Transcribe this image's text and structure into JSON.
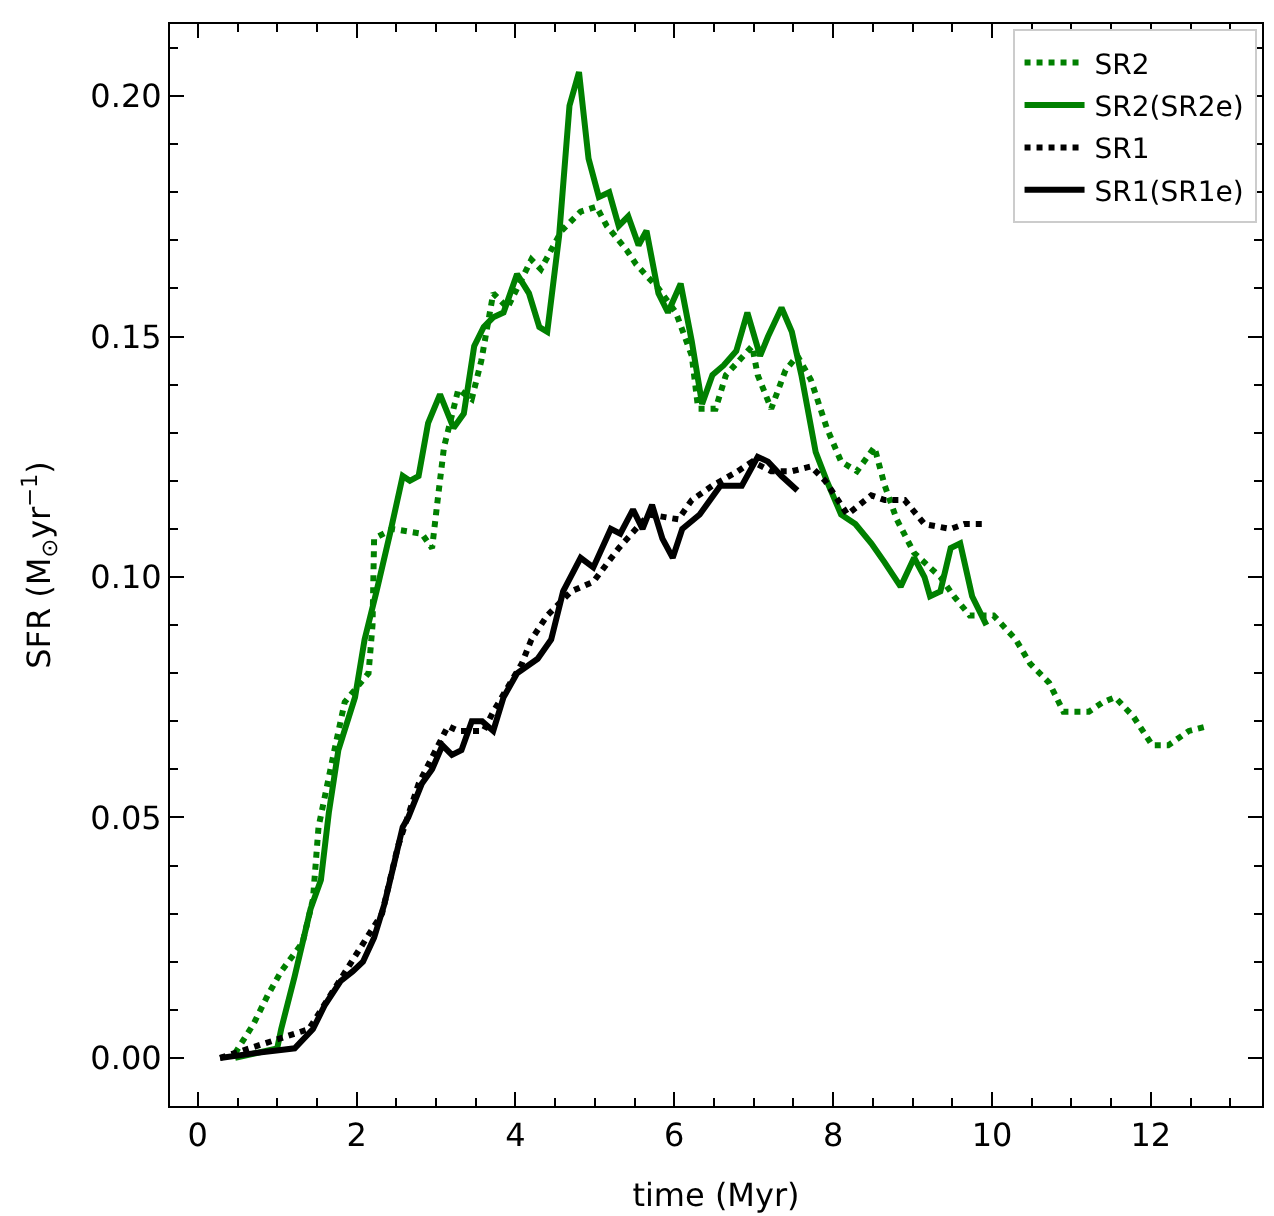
{
  "chart_data": {
    "type": "line",
    "xlabel": "time (Myr)",
    "ylabel": "SFR (M$_{⊙}$yr$^{−1}$)",
    "xlim": [
      -0.35,
      13.4
    ],
    "ylim": [
      -0.01,
      0.215
    ],
    "xticks": [
      0,
      2,
      4,
      6,
      8,
      10,
      12
    ],
    "yticks": [
      {
        "value": 0,
        "label": "0.00"
      },
      {
        "value": 0.05,
        "label": "0.05"
      },
      {
        "value": 0.1,
        "label": "0.10"
      },
      {
        "value": 0.15,
        "label": "0.15"
      },
      {
        "value": 0.2,
        "label": "0.20"
      }
    ],
    "legend": "top right",
    "marker": "none",
    "series": [
      {
        "name": "SR2",
        "color": "#008000",
        "line_style": "dotted",
        "x": [
          0.47,
          0.7,
          0.88,
          1.05,
          1.32,
          1.45,
          1.52,
          1.72,
          1.85,
          2.15,
          2.2,
          2.22,
          2.45,
          2.82,
          2.95,
          3.02,
          3.1,
          3.28,
          3.45,
          3.57,
          3.72,
          3.9,
          4.2,
          4.32,
          4.58,
          4.82,
          5.02,
          5.15,
          5.4,
          5.52,
          5.8,
          6.02,
          6.22,
          6.3,
          6.52,
          6.65,
          6.98,
          7.05,
          7.22,
          7.4,
          7.55,
          7.72,
          7.92,
          8.1,
          8.3,
          8.52,
          8.65,
          8.8,
          9.02,
          9.35,
          9.52,
          9.72,
          10.02,
          10.3,
          10.48,
          10.72,
          10.9,
          11.22,
          11.4,
          11.55,
          11.78,
          12.02,
          12.22,
          12.48,
          12.72
        ],
        "values": [
          0.001,
          0.007,
          0.013,
          0.018,
          0.024,
          0.033,
          0.048,
          0.064,
          0.074,
          0.08,
          0.09,
          0.108,
          0.11,
          0.109,
          0.106,
          0.116,
          0.127,
          0.139,
          0.137,
          0.145,
          0.159,
          0.156,
          0.166,
          0.164,
          0.172,
          0.176,
          0.177,
          0.173,
          0.168,
          0.165,
          0.16,
          0.155,
          0.146,
          0.135,
          0.135,
          0.142,
          0.148,
          0.142,
          0.135,
          0.143,
          0.146,
          0.141,
          0.131,
          0.124,
          0.122,
          0.127,
          0.119,
          0.112,
          0.105,
          0.1,
          0.096,
          0.092,
          0.092,
          0.087,
          0.082,
          0.078,
          0.072,
          0.072,
          0.074,
          0.075,
          0.071,
          0.065,
          0.065,
          0.068,
          0.069
        ]
      },
      {
        "name": "SR2(SR2e)",
        "color": "#008000",
        "line_style": "solid",
        "x": [
          0.47,
          1.0,
          1.05,
          1.22,
          1.42,
          1.55,
          1.65,
          1.77,
          1.98,
          2.1,
          2.25,
          2.42,
          2.58,
          2.67,
          2.78,
          2.9,
          3.05,
          3.22,
          3.35,
          3.48,
          3.6,
          3.72,
          3.85,
          4.02,
          4.17,
          4.3,
          4.4,
          4.55,
          4.68,
          4.8,
          4.92,
          5.05,
          5.18,
          5.3,
          5.42,
          5.55,
          5.65,
          5.8,
          5.92,
          6.08,
          6.22,
          6.35,
          6.48,
          6.62,
          6.78,
          6.92,
          7.08,
          7.18,
          7.35,
          7.48,
          7.6,
          7.78,
          7.92,
          8.1,
          8.28,
          8.48,
          8.65,
          8.85,
          9.02,
          9.15,
          9.22,
          9.35,
          9.48,
          9.6,
          9.75,
          9.93
        ],
        "values": [
          0,
          0.002,
          0.006,
          0.017,
          0.031,
          0.037,
          0.051,
          0.064,
          0.075,
          0.087,
          0.097,
          0.109,
          0.121,
          0.12,
          0.121,
          0.132,
          0.138,
          0.131,
          0.134,
          0.148,
          0.152,
          0.154,
          0.155,
          0.163,
          0.159,
          0.152,
          0.151,
          0.171,
          0.198,
          0.205,
          0.187,
          0.179,
          0.18,
          0.173,
          0.175,
          0.169,
          0.172,
          0.159,
          0.155,
          0.161,
          0.149,
          0.136,
          0.142,
          0.144,
          0.147,
          0.155,
          0.146,
          0.15,
          0.156,
          0.151,
          0.142,
          0.126,
          0.12,
          0.113,
          0.111,
          0.107,
          0.103,
          0.098,
          0.104,
          0.1,
          0.096,
          0.097,
          0.106,
          0.107,
          0.096,
          0.09
        ]
      },
      {
        "name": "SR1",
        "color": "#000000",
        "line_style": "dotted",
        "x": [
          0.28,
          1.4,
          2.32,
          2.52,
          2.78,
          3.15,
          3.28,
          3.6,
          3.72,
          4.08,
          4.2,
          4.4,
          4.7,
          4.98,
          5.3,
          5.68,
          6.05,
          6.22,
          6.48,
          6.8,
          6.98,
          7.22,
          7.48,
          7.72,
          7.9,
          8.18,
          8.48,
          8.65,
          8.9,
          9.15,
          9.48,
          9.65,
          9.92
        ],
        "values": [
          0,
          0.006,
          0.03,
          0.044,
          0.057,
          0.069,
          0.068,
          0.068,
          0.072,
          0.082,
          0.087,
          0.092,
          0.097,
          0.099,
          0.106,
          0.113,
          0.112,
          0.116,
          0.119,
          0.122,
          0.124,
          0.122,
          0.122,
          0.123,
          0.12,
          0.113,
          0.117,
          0.116,
          0.116,
          0.111,
          0.11,
          0.111,
          0.111
        ]
      },
      {
        "name": "SR1(SR1e)",
        "color": "#000000",
        "line_style": "solid",
        "x": [
          0.28,
          0.72,
          1.22,
          1.45,
          1.6,
          1.8,
          1.95,
          2.08,
          2.22,
          2.35,
          2.48,
          2.58,
          2.65,
          2.82,
          2.95,
          3.08,
          3.2,
          3.32,
          3.45,
          3.58,
          3.72,
          3.85,
          4.02,
          4.28,
          4.45,
          4.6,
          4.82,
          4.98,
          5.2,
          5.32,
          5.48,
          5.6,
          5.72,
          5.85,
          5.98,
          6.1,
          6.32,
          6.58,
          6.85,
          7.05,
          7.18,
          7.35,
          7.55
        ],
        "values": [
          0,
          0.001,
          0.002,
          0.006,
          0.011,
          0.016,
          0.018,
          0.02,
          0.025,
          0.032,
          0.041,
          0.048,
          0.05,
          0.057,
          0.06,
          0.065,
          0.063,
          0.064,
          0.07,
          0.07,
          0.068,
          0.075,
          0.08,
          0.083,
          0.087,
          0.097,
          0.104,
          0.102,
          0.11,
          0.109,
          0.114,
          0.11,
          0.115,
          0.108,
          0.104,
          0.11,
          0.113,
          0.119,
          0.119,
          0.125,
          0.124,
          0.121,
          0.118
        ]
      }
    ]
  }
}
